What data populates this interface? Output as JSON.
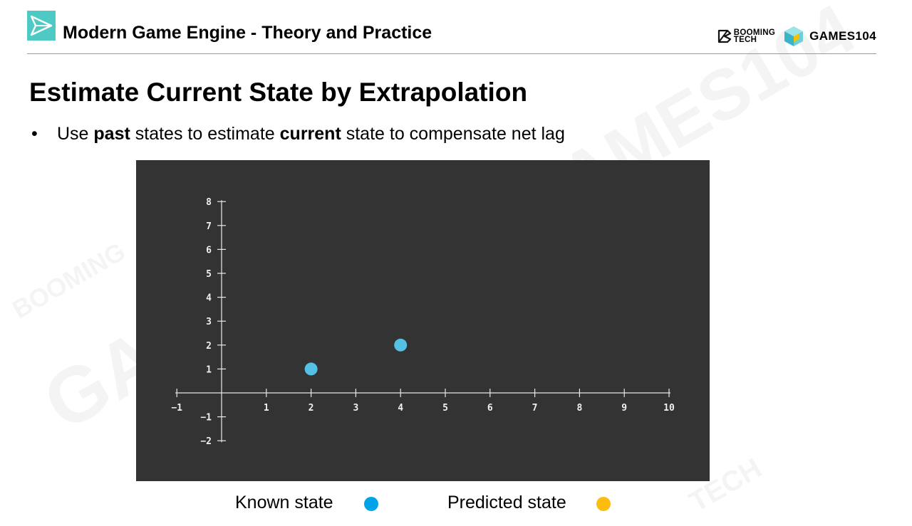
{
  "header": {
    "course_title": "Modern Game Engine - Theory and Practice",
    "brand_booming_line1": "BOOMING",
    "brand_booming_line2": "TECH",
    "brand_games": "GAMES104"
  },
  "slide": {
    "title": "Estimate Current State by Extrapolation",
    "bullet": {
      "marker": "•",
      "text_before": "Use ",
      "bold1": "past",
      "text_middle": " states to estimate ",
      "bold2": "current",
      "text_after": " state to compensate net lag"
    }
  },
  "legend": {
    "known_label": "Known state",
    "predicted_label": "Predicted state"
  },
  "colors": {
    "panel_bg": "#333333",
    "known": "#00a2e8",
    "known_point": "#55bfe4",
    "predicted": "#fdbd10",
    "axis": "#e8e8e8"
  },
  "icons": {
    "course_logo": "paper-plane-icon",
    "booming_logo": "booming-tech-logo",
    "games_logo": "cube-icon"
  },
  "watermark_text": {
    "games": "GAMES104",
    "booming": "BOOMING",
    "tech": "TECH"
  },
  "chart_data": {
    "type": "scatter",
    "x_ticks": [
      "−1",
      "1",
      "2",
      "3",
      "4",
      "5",
      "6",
      "7",
      "8",
      "9",
      "10"
    ],
    "y_ticks": [
      "8",
      "7",
      "6",
      "5",
      "4",
      "3",
      "2",
      "1",
      "−1",
      "−2"
    ],
    "xlim": [
      -1,
      10
    ],
    "ylim": [
      -2,
      8
    ],
    "grid": false,
    "series": [
      {
        "name": "Known state",
        "points": [
          [
            2,
            1
          ],
          [
            4,
            2
          ]
        ]
      },
      {
        "name": "Predicted state",
        "points": []
      }
    ]
  }
}
